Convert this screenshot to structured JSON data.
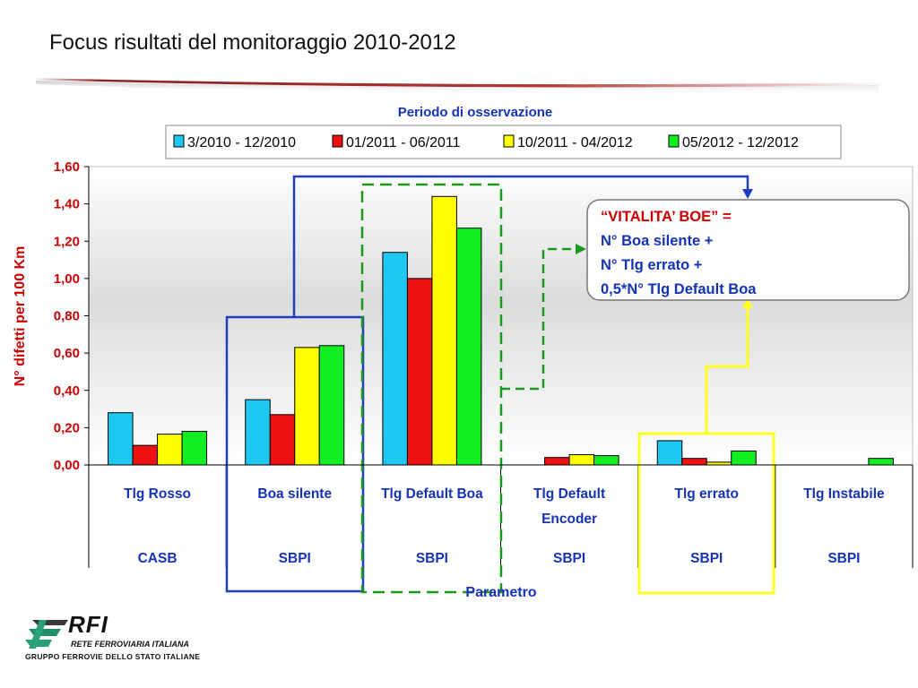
{
  "slide": {
    "title": "Focus risultati del monitoraggio 2010-2012"
  },
  "chart_data": {
    "type": "bar",
    "title": "Periodo di osservazione",
    "xlabel": "Parametro",
    "ylabel": "N° difetti per 100 Km",
    "ylim": [
      0,
      1.6
    ],
    "yticks": [
      "0,00",
      "0,20",
      "0,40",
      "0,60",
      "0,80",
      "1,00",
      "1,20",
      "1,40",
      "1,60"
    ],
    "grid": false,
    "legend_position": "top",
    "categories": [
      {
        "label": [
          "Tlg Rosso"
        ],
        "group": "CASB"
      },
      {
        "label": [
          "Boa silente"
        ],
        "group": "SBPI"
      },
      {
        "label": [
          "Tlg Default Boa"
        ],
        "group": "SBPI"
      },
      {
        "label": [
          "Tlg Default",
          "Encoder"
        ],
        "group": "SBPI"
      },
      {
        "label": [
          "Tlg errato"
        ],
        "group": "SBPI"
      },
      {
        "label": [
          "Tlg Instabile"
        ],
        "group": "SBPI"
      }
    ],
    "series": [
      {
        "name": "3/2010 - 12/2010",
        "color": "#1EC8F0",
        "values": [
          0.28,
          0.35,
          1.14,
          0.0,
          0.13,
          0.0
        ]
      },
      {
        "name": "01/2011 - 06/2011",
        "color": "#EE1111",
        "values": [
          0.105,
          0.27,
          1.0,
          0.04,
          0.035,
          0.0
        ]
      },
      {
        "name": "10/2011 - 04/2012",
        "color": "#FFFF00",
        "values": [
          0.165,
          0.63,
          1.44,
          0.055,
          0.015,
          0.0
        ]
      },
      {
        "name": "05/2012 - 12/2012",
        "color": "#11EE22",
        "values": [
          0.18,
          0.64,
          1.27,
          0.05,
          0.075,
          0.035
        ]
      }
    ],
    "annotation": {
      "lines": [
        "“VITALITA’ BOE” =",
        "N°    Boa silente +",
        "N°    Tlg errato +",
        "0,5*N°    Tlg Default Boa"
      ]
    },
    "highlight_colors": {
      "boa_silente": "#1F3FBF",
      "tlg_default_boa": "#1A9A1A",
      "tlg_errato": "#FFFF22"
    }
  },
  "logo": {
    "name": "RFI",
    "line1": "RETE FERROVIARIA ITALIANA",
    "line2": "GRUPPO FERROVIE DELLO STATO ITALIANE"
  },
  "colors": {
    "axis_text": "#CC0000",
    "category_text": "#1533B5",
    "title_text": "#1533B5"
  }
}
